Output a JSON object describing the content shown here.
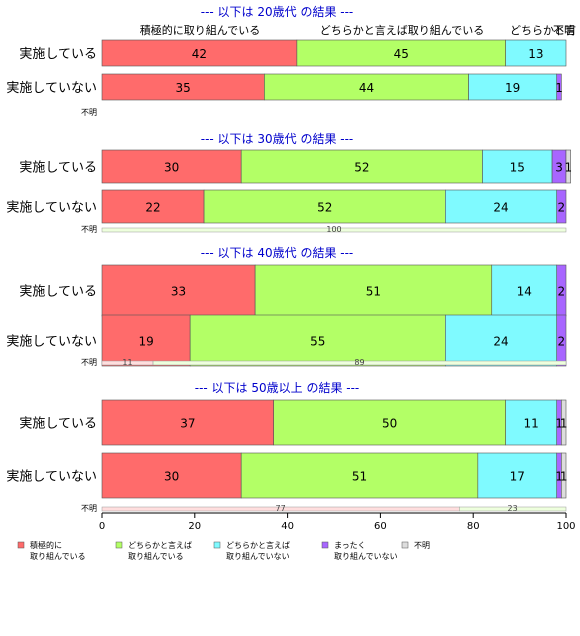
{
  "colors": {
    "積極的に取り組んでいる": "#ff6b6b",
    "どちらかと言えば取り組んでいる": "#b3ff66",
    "どちらかと言えば取り組んでいない": "#7ffaff",
    "まったく取り組んでいない": "#a866ff",
    "不明": "#dddddd",
    "group_title": "#0000cc"
  },
  "top_labels": [
    "積極的に取り組んでいる",
    "どちらかと言えば取り組んでいる",
    "どちらかと言",
    "不明"
  ],
  "chart_data": {
    "type": "bar",
    "orientation": "horizontal",
    "stacked": true,
    "xlim": [
      0,
      100
    ],
    "xticks": [
      "0",
      "20",
      "40",
      "60",
      "80",
      "100"
    ],
    "legend_position": "bottom",
    "legend": [
      "積極的に\n取り組んでいる",
      "どちらかと言えば\n取り組んでいる",
      "どちらかと言えば\n取り組んでいない",
      "まったく\n取り組んでいない",
      "不明"
    ],
    "series_names": [
      "積極的に取り組んでいる",
      "どちらかと言えば取り組んでいる",
      "どちらかと言えば取り組んでいない",
      "まったく取り組んでいない",
      "不明"
    ],
    "groups": [
      {
        "title": "--- 以下は 20歳代 の結果 ---",
        "rows": [
          {
            "label": "実施している",
            "values": [
              42,
              45,
              13,
              0,
              0
            ]
          },
          {
            "label": "実施していない",
            "values": [
              35,
              44,
              19,
              1,
              0
            ]
          }
        ],
        "unknown_row": {
          "label": "不明",
          "values": []
        }
      },
      {
        "title": "--- 以下は 30歳代 の結果 ---",
        "rows": [
          {
            "label": "実施している",
            "values": [
              30,
              52,
              15,
              3,
              1
            ]
          },
          {
            "label": "実施していない",
            "values": [
              22,
              52,
              24,
              2,
              0
            ]
          }
        ],
        "unknown_row": {
          "label": "不明",
          "values": [
            0,
            100,
            0,
            0,
            0
          ]
        }
      },
      {
        "title": "--- 以下は 40歳代 の結果 ---",
        "rows": [
          {
            "label": "実施している",
            "values": [
              33,
              51,
              14,
              2,
              0
            ]
          },
          {
            "label": "実施していない",
            "values": [
              19,
              55,
              24,
              2,
              0
            ]
          }
        ],
        "unknown_row": {
          "label": "不明",
          "values": [
            11,
            89,
            0,
            0,
            0
          ]
        }
      },
      {
        "title": "--- 以下は 50歳以上 の結果 ---",
        "rows": [
          {
            "label": "実施している",
            "values": [
              37,
              50,
              11,
              1,
              1
            ]
          },
          {
            "label": "実施していない",
            "values": [
              30,
              51,
              17,
              1,
              1
            ]
          }
        ],
        "unknown_row": {
          "label": "不明",
          "values": [
            77,
            23,
            0,
            0,
            0
          ]
        }
      }
    ]
  }
}
